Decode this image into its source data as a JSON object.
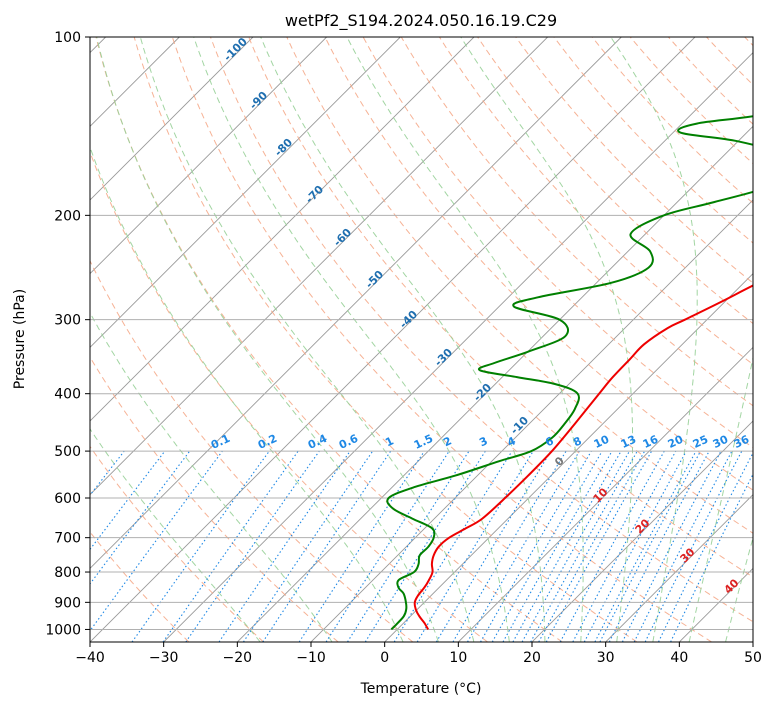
{
  "chart_data": {
    "type": "line",
    "title": "wetPf2_S194.2024.050.16.19.C29",
    "xlabel": "Temperature (°C)",
    "ylabel": "Pressure (hPa)",
    "xlim": [
      -40,
      50
    ],
    "ylim": [
      1050,
      100
    ],
    "y_scale": "log",
    "x_ticks": [
      "−40",
      "−30",
      "−20",
      "−10",
      "0",
      "10",
      "20",
      "30",
      "40",
      "50"
    ],
    "y_ticks": [
      {
        "p": 100,
        "label": "100"
      },
      {
        "p": 200,
        "label": "200"
      },
      {
        "p": 300,
        "label": "300"
      },
      {
        "p": 400,
        "label": "400"
      },
      {
        "p": 500,
        "label": "500"
      },
      {
        "p": 600,
        "label": "600"
      },
      {
        "p": 700,
        "label": "700"
      },
      {
        "p": 800,
        "label": "800"
      },
      {
        "p": 900,
        "label": "900"
      },
      {
        "p": 1000,
        "label": "1000"
      }
    ],
    "grid": true,
    "colors": {
      "temperature": "#ee0000",
      "dewpoint": "#008000",
      "isotherm": "#999999",
      "dry_adiabat": "#f4a582",
      "moist_adiabat": "#98d098",
      "mixing_ratio": "#1e88e5",
      "dry_adiabat_label": "#1f6fb0",
      "moist_adiabat_label": "#dd2222"
    },
    "series": [
      {
        "key": "temperature",
        "points": [
          [
            1000,
            4.2
          ],
          [
            975,
            2.8
          ],
          [
            950,
            1.2
          ],
          [
            925,
            -0.2
          ],
          [
            900,
            -1.3
          ],
          [
            875,
            -1.8
          ],
          [
            850,
            -2.0
          ],
          [
            825,
            -2.4
          ],
          [
            800,
            -3.0
          ],
          [
            775,
            -4.2
          ],
          [
            750,
            -5.1
          ],
          [
            725,
            -5.6
          ],
          [
            700,
            -5.4
          ],
          [
            675,
            -4.4
          ],
          [
            650,
            -3.5
          ],
          [
            600,
            -3.2
          ],
          [
            550,
            -3.1
          ],
          [
            500,
            -3.2
          ],
          [
            450,
            -3.8
          ],
          [
            400,
            -4.6
          ],
          [
            375,
            -5.0
          ],
          [
            350,
            -5.1
          ],
          [
            330,
            -5.2
          ],
          [
            310,
            -4.2
          ],
          [
            300,
            -3.0
          ],
          [
            280,
            -0.5
          ],
          [
            260,
            2.0
          ],
          [
            240,
            5.5
          ],
          [
            220,
            10.0
          ],
          [
            200,
            15.0
          ],
          [
            185,
            17.0
          ],
          [
            170,
            19.0
          ],
          [
            160,
            21.0
          ],
          [
            150,
            24.0
          ],
          [
            140,
            27.5
          ],
          [
            130,
            32.0
          ],
          [
            120,
            36.5
          ],
          [
            110,
            42.0
          ],
          [
            100,
            47.0
          ]
        ]
      },
      {
        "key": "dewpoint",
        "points": [
          [
            1000,
            -0.8
          ],
          [
            975,
            -0.8
          ],
          [
            950,
            -0.9
          ],
          [
            925,
            -1.5
          ],
          [
            900,
            -2.5
          ],
          [
            870,
            -4.0
          ],
          [
            850,
            -5.5
          ],
          [
            825,
            -6.5
          ],
          [
            800,
            -5.5
          ],
          [
            775,
            -6.0
          ],
          [
            750,
            -7.0
          ],
          [
            725,
            -7.0
          ],
          [
            700,
            -7.5
          ],
          [
            675,
            -9.0
          ],
          [
            650,
            -13.0
          ],
          [
            625,
            -17.0
          ],
          [
            600,
            -19.0
          ],
          [
            575,
            -17.0
          ],
          [
            550,
            -13.0
          ],
          [
            520,
            -9.0
          ],
          [
            500,
            -6.0
          ],
          [
            475,
            -5.0
          ],
          [
            450,
            -5.2
          ],
          [
            425,
            -5.8
          ],
          [
            400,
            -7.5
          ],
          [
            385,
            -12.0
          ],
          [
            375,
            -18.0
          ],
          [
            365,
            -24.0
          ],
          [
            355,
            -23.0
          ],
          [
            340,
            -20.0
          ],
          [
            320,
            -17.0
          ],
          [
            300,
            -20.0
          ],
          [
            285,
            -28.0
          ],
          [
            275,
            -26.0
          ],
          [
            260,
            -18.0
          ],
          [
            245,
            -15.0
          ],
          [
            230,
            -17.0
          ],
          [
            215,
            -22.0
          ],
          [
            200,
            -20.0
          ],
          [
            190,
            -15.0
          ],
          [
            180,
            -10.0
          ],
          [
            170,
            -8.0
          ],
          [
            160,
            -10.0
          ],
          [
            150,
            -20.0
          ],
          [
            145,
            -29.0
          ],
          [
            140,
            -28.0
          ],
          [
            135,
            -20.0
          ],
          [
            125,
            -12.0
          ],
          [
            115,
            -6.0
          ],
          [
            108,
            -5.0
          ],
          [
            100,
            -7.0
          ]
        ]
      }
    ],
    "dry_adiabat_labels": [
      "-100",
      "-90",
      "-80",
      "-70",
      "-60",
      "-50",
      "-40",
      "-30",
      "-20",
      "-10"
    ],
    "moist_adiabat_labels": [
      "0",
      "10",
      "20",
      "30",
      "40"
    ],
    "mixing_ratio_labels": [
      "0.1",
      "0.2",
      "0.4",
      "0.6",
      "1",
      "1.5",
      "2",
      "3",
      "4",
      "6",
      "8",
      "10",
      "13",
      "16",
      "20",
      "25",
      "30",
      "36"
    ]
  }
}
